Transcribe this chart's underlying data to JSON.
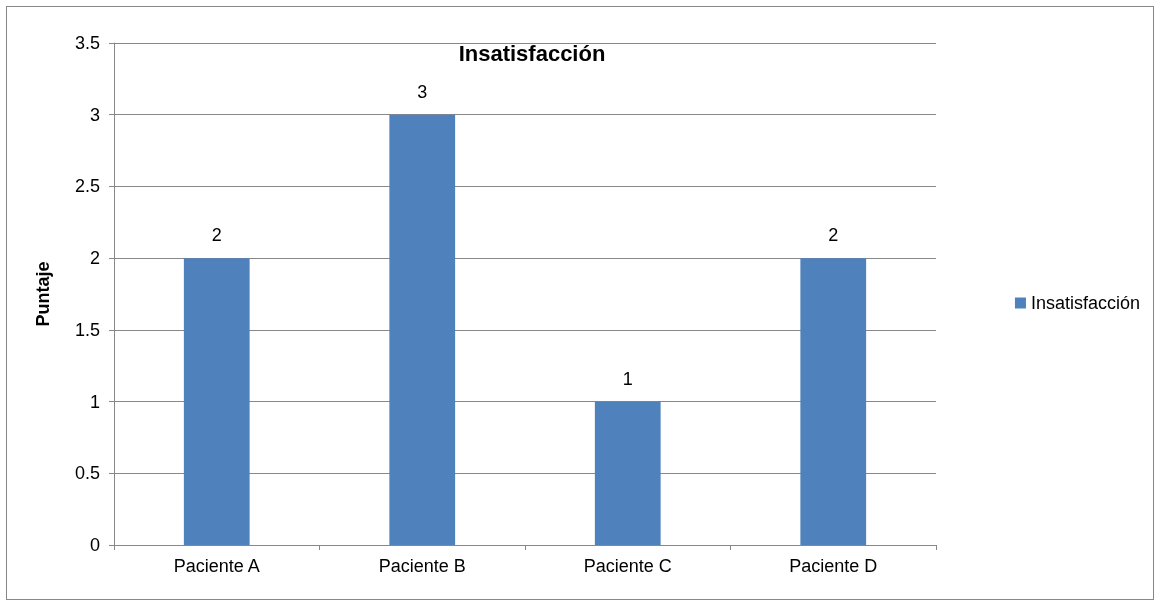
{
  "chart_data": {
    "type": "bar",
    "title": "Insatisfacción",
    "ylabel": "Puntaje",
    "categories": [
      "Paciente A",
      "Paciente B",
      "Paciente C",
      "Paciente D"
    ],
    "series": [
      {
        "name": "Insatisfacción",
        "color": "#4f81bd",
        "values": [
          2,
          3,
          1,
          2
        ]
      }
    ],
    "ylim": [
      0,
      3.5
    ],
    "yticks": [
      0,
      0.5,
      1,
      1.5,
      2,
      2.5,
      3,
      3.5
    ],
    "grid": "y",
    "legend": "right",
    "data_labels": true
  }
}
